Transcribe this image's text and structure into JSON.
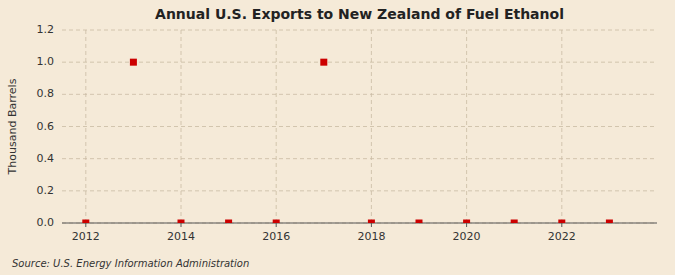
{
  "chart_data": {
    "type": "scatter",
    "title": "Annual U.S. Exports to New Zealand of Fuel Ethanol",
    "y_label": "Thousand Barrels",
    "annotations": [
      "Source: U.S. Energy Information Administration"
    ],
    "x": [
      2012,
      2013,
      2014,
      2015,
      2016,
      2017,
      2018,
      2019,
      2020,
      2021,
      2022,
      2023
    ],
    "values": [
      0,
      1.0,
      0,
      0,
      0,
      1.0,
      0,
      0,
      0,
      0,
      0,
      0
    ],
    "xlim": [
      2011.5,
      2024.0
    ],
    "ylim": [
      0.0,
      1.2
    ],
    "xticks": [
      2012,
      2014,
      2016,
      2018,
      2020,
      2022
    ],
    "yticks": [
      {
        "value": 0.0,
        "label": "0.0"
      },
      0.2,
      0.4,
      0.6,
      0.8,
      {
        "value": 1.0,
        "label": "1.0"
      },
      1.2
    ],
    "color": "#cc0000",
    "marker": "square",
    "grid": true
  }
}
